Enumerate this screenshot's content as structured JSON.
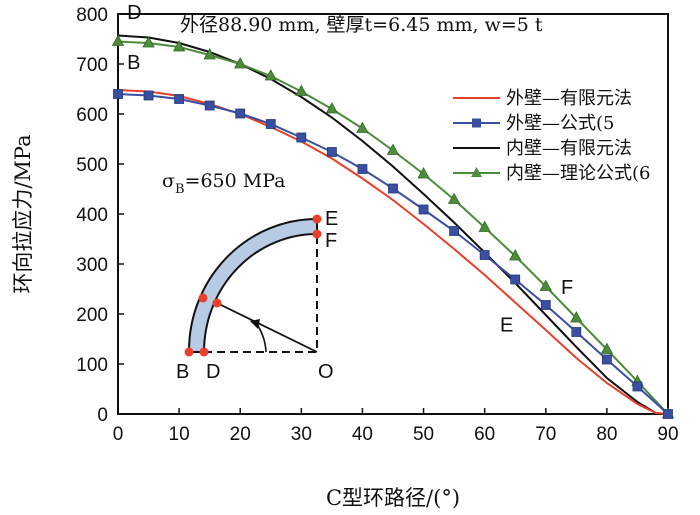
{
  "chart_data": {
    "type": "line",
    "title": "外径88.90 mm, 壁厚t=6.45 mm, w=5 t",
    "xlabel": "C型环路径/(°)",
    "ylabel": "环向拉应力/MPa",
    "xlim": [
      0,
      90
    ],
    "ylim": [
      0,
      800
    ],
    "xticks": [
      0,
      10,
      20,
      30,
      40,
      50,
      60,
      70,
      80,
      90
    ],
    "yticks": [
      0,
      100,
      200,
      300,
      400,
      500,
      600,
      700,
      800
    ],
    "annotation_sigma": "σB=650 MPa",
    "annotation_sigma_main": "σ",
    "annotation_sigma_sub": "B",
    "annotation_sigma_rest": "=650 MPa",
    "curve_labels": [
      {
        "text": "D",
        "x": 1.5,
        "y": 790
      },
      {
        "text": "B",
        "x": 1.5,
        "y": 690
      },
      {
        "text": "E",
        "x": 62.5,
        "y": 165
      },
      {
        "text": "F",
        "x": 72.5,
        "y": 240
      }
    ],
    "inset": {
      "point_labels": [
        "E",
        "F",
        "B",
        "D",
        "O"
      ]
    },
    "series": [
      {
        "name": "外壁—有限元法",
        "color": "#e8402a",
        "marker": "none",
        "x": [
          0,
          5,
          10,
          15,
          20,
          25,
          30,
          35,
          40,
          45,
          50,
          55,
          60,
          65,
          70,
          75,
          80,
          85,
          88,
          90
        ],
        "y": [
          648,
          645,
          636,
          620,
          600,
          574,
          545,
          511,
          471,
          428,
          380,
          330,
          278,
          223,
          168,
          112,
          62,
          20,
          2,
          0
        ]
      },
      {
        "name": "外壁—公式(5",
        "color": "#3a4fa0",
        "marker": "square",
        "x": [
          0,
          5,
          10,
          15,
          20,
          25,
          30,
          35,
          40,
          45,
          50,
          55,
          60,
          65,
          70,
          75,
          80,
          85,
          90
        ],
        "y": [
          640,
          637,
          630,
          617,
          601,
          580,
          553,
          524,
          490,
          451,
          409,
          366,
          318,
          269,
          218,
          164,
          109,
          55,
          0
        ]
      },
      {
        "name": "内壁—有限元法",
        "color": "#111111",
        "marker": "none",
        "x": [
          0,
          5,
          10,
          15,
          20,
          25,
          30,
          35,
          40,
          45,
          50,
          55,
          60,
          65,
          70,
          75,
          80,
          85,
          88,
          90
        ],
        "y": [
          757,
          753,
          742,
          724,
          700,
          670,
          634,
          593,
          546,
          495,
          440,
          383,
          323,
          262,
          198,
          134,
          72,
          24,
          2,
          0
        ]
      },
      {
        "name": "内壁—理论公式(6",
        "color": "#4c8c3a",
        "marker": "triangle",
        "x": [
          0,
          5,
          10,
          15,
          20,
          25,
          30,
          35,
          40,
          45,
          50,
          55,
          60,
          65,
          70,
          75,
          80,
          85,
          90
        ],
        "y": [
          745,
          742,
          734,
          718,
          700,
          676,
          645,
          610,
          571,
          527,
          480,
          429,
          373,
          316,
          255,
          192,
          129,
          65,
          0
        ]
      }
    ]
  }
}
